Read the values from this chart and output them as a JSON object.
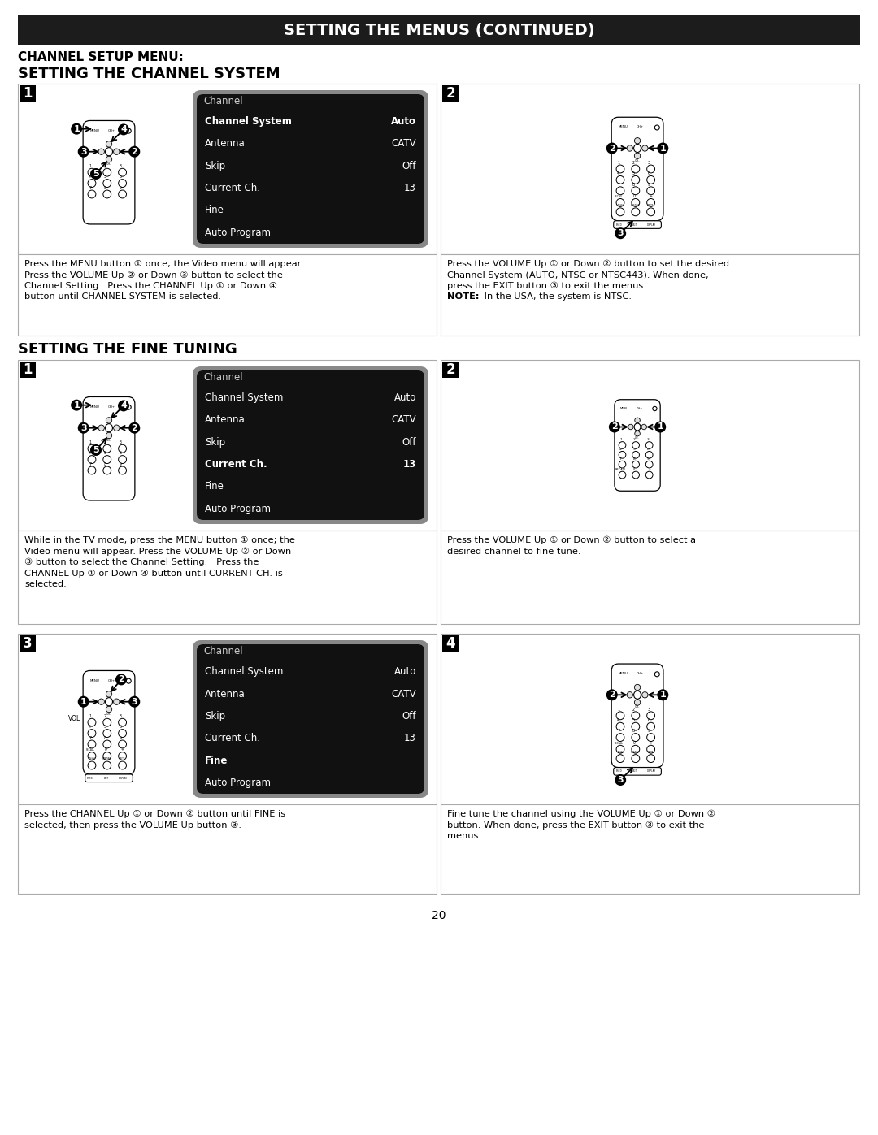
{
  "title": "SETTING THE MENUS (CONTINUED)",
  "section1_title": "CHANNEL SETUP MENU:",
  "section2_title": "SETTING THE CHANNEL SYSTEM",
  "section3_title": "SETTING THE FINE TUNING",
  "menu_rows_system": [
    [
      "Channel System",
      "Auto",
      true
    ],
    [
      "Antenna",
      "CATV",
      false
    ],
    [
      "Skip",
      "Off",
      false
    ],
    [
      "Current Ch.",
      "13",
      false
    ],
    [
      "Fine",
      "",
      false
    ],
    [
      "Auto Program",
      "",
      false
    ]
  ],
  "menu_rows_fine1": [
    [
      "Channel System",
      "Auto",
      false
    ],
    [
      "Antenna",
      "CATV",
      false
    ],
    [
      "Skip",
      "Off",
      false
    ],
    [
      "Current Ch.",
      "13",
      true
    ],
    [
      "Fine",
      "",
      false
    ],
    [
      "Auto Program",
      "",
      false
    ]
  ],
  "menu_rows_fine3": [
    [
      "Channel System",
      "Auto",
      false
    ],
    [
      "Antenna",
      "CATV",
      false
    ],
    [
      "Skip",
      "Off",
      false
    ],
    [
      "Current Ch.",
      "13",
      false
    ],
    [
      "Fine",
      "",
      true
    ],
    [
      "Auto Program",
      "",
      false
    ]
  ],
  "text_block1_left": "Press the MENU button ① once; the Video menu will appear.\nPress the VOLUME Up ② or Down ③ button to select the\nChannel Setting.  Press the CHANNEL Up ① or Down ④\nbutton until CHANNEL SYSTEM is selected.",
  "text_block1_right_main": "Press the VOLUME Up ① or Down ② button to set the desired\nChannel System (AUTO, NTSC or NTSC443). When done,\npress the EXIT button ③ to exit the menus.",
  "text_block1_right_note": "NOTE: In the USA, the system is NTSC.",
  "text_block2_left": "While in the TV mode, press the MENU button ① once; the\nVideo menu will appear. Press the VOLUME Up ② or Down\n③ button to select the Channel Setting.   Press the\nCHANNEL Up ① or Down ④ button until CURRENT CH. is\nselected.",
  "text_block2_right": "Press the VOLUME Up ① or Down ② button to select a\ndesired channel to fine tune.",
  "text_block3_left": "Press the CHANNEL Up ① or Down ② button until FINE is\nselected, then press the VOLUME Up button ③.",
  "text_block3_right": "Fine tune the channel using the VOLUME Up ① or Down ②\nbutton. When done, press the EXIT button ③ to exit the\nmenus.",
  "page_number": "20"
}
